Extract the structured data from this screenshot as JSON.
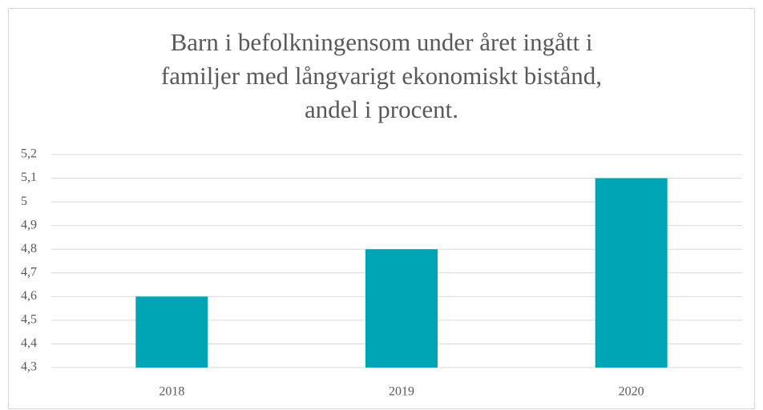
{
  "chart_data": {
    "type": "bar",
    "title": [
      "Barn i befolkningensom under året ingått i",
      "familjer med långvarigt ekonomiskt bistånd,",
      "andel i procent."
    ],
    "categories": [
      "2018",
      "2019",
      "2020"
    ],
    "values": [
      4.6,
      4.8,
      5.1
    ],
    "color": "#00a5b5",
    "ylim": [
      4.3,
      5.2
    ],
    "yticks": [
      {
        "value": 4.3,
        "label": "4,3"
      },
      {
        "value": 4.4,
        "label": "4,4"
      },
      {
        "value": 4.5,
        "label": "4,5"
      },
      {
        "value": 4.6,
        "label": "4,6"
      },
      {
        "value": 4.7,
        "label": "4,7"
      },
      {
        "value": 4.8,
        "label": "4,8"
      },
      {
        "value": 4.9,
        "label": "4,9"
      },
      5,
      {
        "value": 5.1,
        "label": "5,1"
      },
      {
        "value": 5.2,
        "label": "5,2"
      }
    ],
    "grid": true
  }
}
